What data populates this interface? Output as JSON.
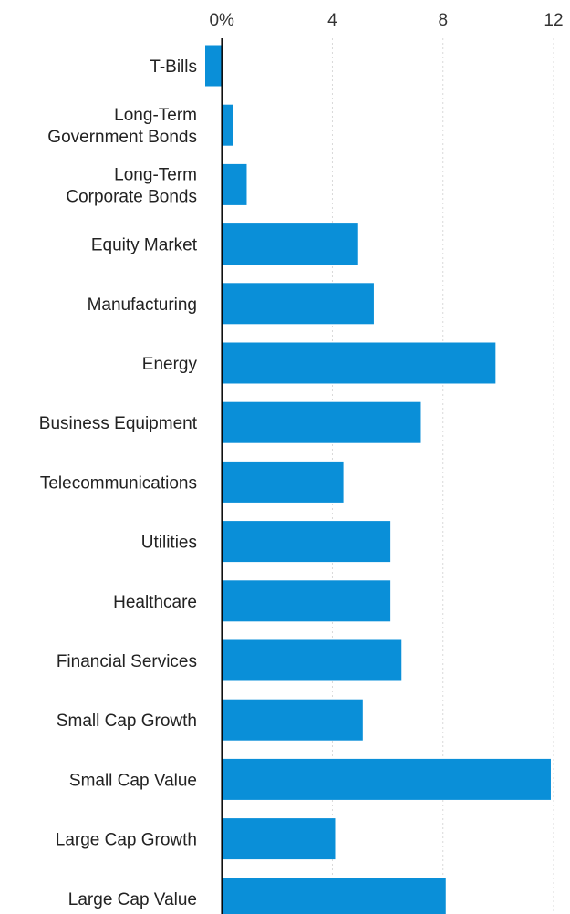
{
  "chart_data": {
    "type": "bar",
    "orientation": "horizontal",
    "title": "",
    "xlabel": "",
    "ylabel": "",
    "xlim": [
      -0.6,
      12
    ],
    "ticks": [
      {
        "value": 0,
        "label": "0%"
      },
      {
        "value": 4,
        "label": "4"
      },
      {
        "value": 8,
        "label": "8"
      },
      {
        "value": 12,
        "label": "12"
      }
    ],
    "tick_position": "top",
    "grid": true,
    "color": "#0a8fd8",
    "categories": [
      [
        "T-Bills"
      ],
      [
        "Long-Term",
        "Government Bonds"
      ],
      [
        "Long-Term",
        "Corporate Bonds"
      ],
      [
        "Equity Market"
      ],
      [
        "Manufacturing"
      ],
      [
        "Energy"
      ],
      [
        "Business Equipment"
      ],
      [
        "Telecommunications"
      ],
      [
        "Utilities"
      ],
      [
        "Healthcare"
      ],
      [
        "Financial Services"
      ],
      [
        "Small Cap Growth"
      ],
      [
        "Small Cap Value"
      ],
      [
        "Large Cap Growth"
      ],
      [
        "Large Cap Value"
      ]
    ],
    "values": [
      -0.6,
      0.4,
      0.9,
      4.9,
      5.5,
      9.9,
      7.2,
      4.4,
      6.1,
      6.1,
      6.5,
      5.1,
      11.9,
      4.1,
      8.1
    ]
  }
}
